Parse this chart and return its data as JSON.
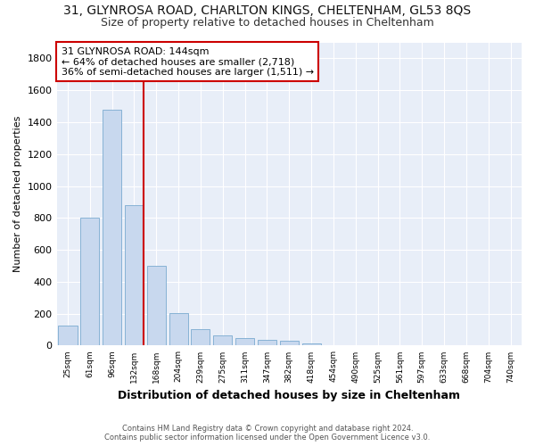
{
  "title": "31, GLYNROSA ROAD, CHARLTON KINGS, CHELTENHAM, GL53 8QS",
  "subtitle": "Size of property relative to detached houses in Cheltenham",
  "xlabel": "Distribution of detached houses by size in Cheltenham",
  "ylabel": "Number of detached properties",
  "categories": [
    "25sqm",
    "61sqm",
    "96sqm",
    "132sqm",
    "168sqm",
    "204sqm",
    "239sqm",
    "275sqm",
    "311sqm",
    "347sqm",
    "382sqm",
    "418sqm",
    "454sqm",
    "490sqm",
    "525sqm",
    "561sqm",
    "597sqm",
    "633sqm",
    "668sqm",
    "704sqm",
    "740sqm"
  ],
  "values": [
    125,
    800,
    1480,
    880,
    500,
    205,
    105,
    65,
    45,
    35,
    30,
    12,
    0,
    0,
    0,
    0,
    0,
    0,
    0,
    0,
    0
  ],
  "bar_color": "#c8d8ee",
  "bar_edge_color": "#7aaad0",
  "red_line_index": 3,
  "annotation_title": "31 GLYNROSA ROAD: 144sqm",
  "annotation_line1": "← 64% of detached houses are smaller (2,718)",
  "annotation_line2": "36% of semi-detached houses are larger (1,511) →",
  "annotation_box_color": "#ffffff",
  "annotation_box_edge_color": "#cc0000",
  "red_line_color": "#cc0000",
  "ylim": [
    0,
    1900
  ],
  "yticks": [
    0,
    200,
    400,
    600,
    800,
    1000,
    1200,
    1400,
    1600,
    1800
  ],
  "footer1": "Contains HM Land Registry data © Crown copyright and database right 2024.",
  "footer2": "Contains public sector information licensed under the Open Government Licence v3.0.",
  "plot_bg_color": "#e8eef8",
  "fig_bg_color": "#ffffff",
  "grid_color": "#ffffff",
  "title_fontsize": 10,
  "subtitle_fontsize": 9,
  "ylabel_fontsize": 8,
  "xlabel_fontsize": 9
}
